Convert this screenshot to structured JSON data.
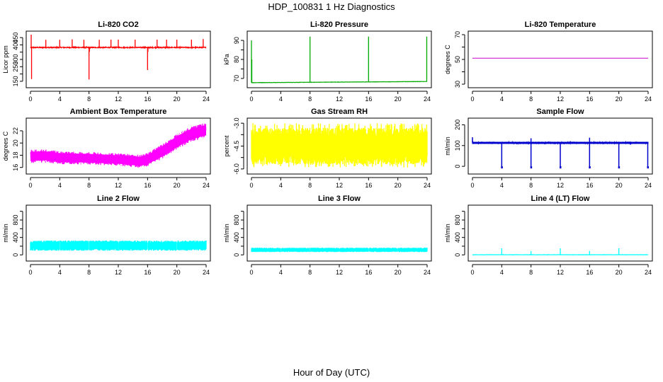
{
  "figure": {
    "title": "HDP_100831  1 Hz Diagnostics",
    "xlabel": "Hour of Day (UTC)"
  },
  "chart_data": [
    {
      "type": "line",
      "title": "Li-820 CO2",
      "ylabel": "Licor ppm",
      "color": "#ff0000",
      "xlim": [
        0,
        24
      ],
      "xticks": [
        0,
        4,
        8,
        12,
        16,
        20,
        24
      ],
      "ylim": [
        130,
        470
      ],
      "yticks": [
        150,
        200,
        250,
        300,
        350,
        400,
        450
      ],
      "yticklabels": [
        "150",
        "",
        "250",
        "300",
        "",
        "400",
        "450"
      ],
      "series": [
        {
          "base": 382,
          "noise": 7,
          "spikes": [
            {
              "x": 0.1,
              "y": 470
            },
            {
              "x": 0.15,
              "y": 165
            },
            {
              "x": 2.1,
              "y": 435
            },
            {
              "x": 4.0,
              "y": 435
            },
            {
              "x": 5.7,
              "y": 438
            },
            {
              "x": 7.3,
              "y": 435
            },
            {
              "x": 8.0,
              "y": 162
            },
            {
              "x": 8.05,
              "y": 352
            },
            {
              "x": 9.4,
              "y": 435
            },
            {
              "x": 11.0,
              "y": 436
            },
            {
              "x": 12.0,
              "y": 436
            },
            {
              "x": 14.3,
              "y": 436
            },
            {
              "x": 16.0,
              "y": 227
            },
            {
              "x": 16.05,
              "y": 352
            },
            {
              "x": 17.3,
              "y": 436
            },
            {
              "x": 18.6,
              "y": 436
            },
            {
              "x": 20.0,
              "y": 436
            },
            {
              "x": 22.0,
              "y": 436
            },
            {
              "x": 23.6,
              "y": 440
            }
          ]
        }
      ]
    },
    {
      "type": "line",
      "title": "Li-820 Pressure",
      "ylabel": "kPa",
      "color": "#00aa00",
      "xlim": [
        0,
        24
      ],
      "xticks": [
        0,
        4,
        8,
        12,
        16,
        20,
        24
      ],
      "ylim": [
        67,
        93
      ],
      "yticks": [
        70,
        75,
        80,
        85,
        90
      ],
      "yticklabels": [
        "70",
        "",
        "80",
        "",
        "90"
      ],
      "series": [
        {
          "base_start": 67.8,
          "base_end": 68.4,
          "noise": 0.15,
          "spikes": [
            {
              "x": 0.0,
              "y": 90
            },
            {
              "x": 0.05,
              "y": 80
            },
            {
              "x": 8.0,
              "y": 92
            },
            {
              "x": 16.0,
              "y": 92
            },
            {
              "x": 23.95,
              "y": 92
            }
          ]
        }
      ]
    },
    {
      "type": "line",
      "title": "Li-820 Temperature",
      "ylabel": "degrees C",
      "color": "#cc00cc",
      "xlim": [
        0,
        24
      ],
      "xticks": [
        0,
        4,
        8,
        12,
        16,
        20,
        24
      ],
      "ylim": [
        30,
        70
      ],
      "yticks": [
        30,
        40,
        50,
        60,
        70
      ],
      "yticklabels": [
        "30",
        "",
        "50",
        "",
        "70"
      ],
      "series": [
        {
          "constant": 51
        }
      ]
    },
    {
      "type": "line",
      "title": "Ambient Box Temperature",
      "ylabel": "degrees C",
      "color": "#ff00ff",
      "xlim": [
        0,
        24
      ],
      "xticks": [
        0,
        4,
        8,
        12,
        16,
        20,
        24
      ],
      "ylim": [
        15.5,
        23.5
      ],
      "yticks": [
        16,
        18,
        20,
        22
      ],
      "yticklabels": [
        "16",
        "18",
        "20",
        "22"
      ],
      "series": [
        {
          "center": [
            [
              0,
              17.8
            ],
            [
              2,
              17.9
            ],
            [
              4,
              17.6
            ],
            [
              8,
              17.5
            ],
            [
              12,
              17.3
            ],
            [
              15,
              17.0
            ],
            [
              16,
              17.3
            ],
            [
              18,
              18.6
            ],
            [
              20,
              20.2
            ],
            [
              22,
              21.5
            ],
            [
              24,
              22.1
            ]
          ],
          "halfwidth": [
            [
              0,
              1.1
            ],
            [
              12,
              1.0
            ],
            [
              16,
              1.1
            ],
            [
              20,
              1.3
            ],
            [
              24,
              1.2
            ]
          ]
        }
      ]
    },
    {
      "type": "line",
      "title": "Gas Stream RH",
      "ylabel": "percent",
      "color": "#ffff00",
      "xlim": [
        0,
        24
      ],
      "xticks": [
        0,
        4,
        8,
        12,
        16,
        20,
        24
      ],
      "ylim": [
        -6.1,
        -2.9
      ],
      "yticks": [
        -6.0,
        -5.25,
        -4.5,
        -3.75,
        -3.0
      ],
      "yticklabels": [
        "-6.0",
        "",
        "-4.5",
        "",
        "-3.0"
      ],
      "series": [
        {
          "low": -5.7,
          "high": -3.3,
          "extreme_low": -5.9,
          "extreme_high": -3.0
        }
      ]
    },
    {
      "type": "line",
      "title": "Sample Flow",
      "ylabel": "ml/min",
      "color": "#0000cc",
      "xlim": [
        0,
        24
      ],
      "xticks": [
        0,
        4,
        8,
        12,
        16,
        20,
        24
      ],
      "ylim": [
        -20,
        215
      ],
      "yticks": [
        0,
        100,
        200
      ],
      "yticklabels": [
        "0",
        "100",
        "200"
      ],
      "series": [
        {
          "base": 113,
          "noise": 6,
          "dips": [
            4.0,
            8.0,
            12.0,
            16.0,
            20.0,
            23.95
          ],
          "dip_value": -5,
          "peaks": [
            {
              "x": 0.0,
              "y": 140
            },
            {
              "x": 8.0,
              "y": 135
            },
            {
              "x": 16.0,
              "y": 138
            }
          ]
        }
      ]
    },
    {
      "type": "line",
      "title": "Line 2 Flow",
      "ylabel": "ml/min",
      "color": "#00ffff",
      "xlim": [
        0,
        24
      ],
      "xticks": [
        0,
        4,
        8,
        12,
        16,
        20,
        24
      ],
      "ylim": [
        -60,
        1060
      ],
      "yticks": [
        0,
        200,
        400,
        600,
        800,
        1000
      ],
      "yticklabels": [
        "0",
        "",
        "400",
        "",
        "800",
        ""
      ],
      "series": [
        {
          "low": 95,
          "high": 330,
          "gaps": [
            4.0,
            8.0,
            12.0,
            16.0,
            20.0
          ]
        }
      ]
    },
    {
      "type": "line",
      "title": "Line 3 Flow",
      "ylabel": "ml/min",
      "color": "#00ffff",
      "xlim": [
        0,
        24
      ],
      "xticks": [
        0,
        4,
        8,
        12,
        16,
        20,
        24
      ],
      "ylim": [
        -60,
        1060
      ],
      "yticks": [
        0,
        200,
        400,
        600,
        800,
        1000
      ],
      "yticklabels": [
        "0",
        "",
        "400",
        "",
        "800",
        ""
      ],
      "series": [
        {
          "low": 65,
          "high": 165,
          "gaps": [
            4.0,
            8.0,
            12.0,
            16.0,
            20.0
          ]
        }
      ]
    },
    {
      "type": "line",
      "title": "Line 4 (LT) Flow",
      "ylabel": "ml/min",
      "color": "#00ffff",
      "xlim": [
        0,
        24
      ],
      "xticks": [
        0,
        4,
        8,
        12,
        16,
        20,
        24
      ],
      "ylim": [
        -60,
        1060
      ],
      "yticks": [
        0,
        200,
        400,
        600,
        800,
        1000
      ],
      "yticklabels": [
        "0",
        "",
        "400",
        "",
        "800",
        ""
      ],
      "series": [
        {
          "base": 3,
          "noise": 6,
          "spikes": [
            {
              "x": 4.0,
              "y": 150
            },
            {
              "x": 8.0,
              "y": 90
            },
            {
              "x": 12.0,
              "y": 150
            },
            {
              "x": 16.0,
              "y": 90
            },
            {
              "x": 20.0,
              "y": 150
            }
          ]
        }
      ]
    }
  ]
}
